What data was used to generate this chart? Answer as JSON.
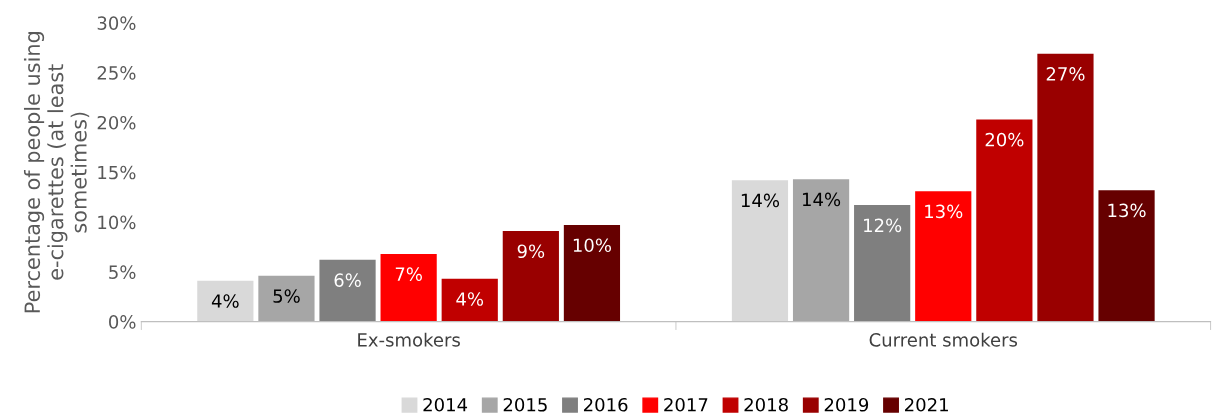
{
  "chart_data": {
    "type": "bar",
    "ylabel": "Percentage of people using e-cigarettes (at least sometimes)",
    "categories": [
      "Ex-smokers",
      "Current smokers"
    ],
    "series": [
      {
        "name": "2014",
        "color": "#d9d9d9",
        "values": [
          4.1,
          14.2
        ],
        "value_labels": [
          "4%",
          "14%"
        ]
      },
      {
        "name": "2015",
        "color": "#a6a6a6",
        "values": [
          4.6,
          14.3
        ],
        "value_labels": [
          "5%",
          "14%"
        ]
      },
      {
        "name": "2016",
        "color": "#7f7f7f",
        "values": [
          6.2,
          11.7
        ],
        "value_labels": [
          "6%",
          "12%"
        ]
      },
      {
        "name": "2017",
        "color": "#ff0000",
        "values": [
          6.8,
          13.1
        ],
        "value_labels": [
          "7%",
          "13%"
        ]
      },
      {
        "name": "2018",
        "color": "#c00000",
        "values": [
          4.3,
          20.3
        ],
        "value_labels": [
          "4%",
          "20%"
        ]
      },
      {
        "name": "2019",
        "color": "#990000",
        "values": [
          9.1,
          26.9
        ],
        "value_labels": [
          "9%",
          "27%"
        ]
      },
      {
        "name": "2021",
        "color": "#660000",
        "values": [
          9.7,
          13.2
        ],
        "value_labels": [
          "10%",
          "13%"
        ]
      }
    ],
    "ylim": [
      0,
      30
    ],
    "yticks": [
      {
        "value": 0,
        "label": "0%"
      },
      {
        "value": 5,
        "label": "5%"
      },
      {
        "value": 10,
        "label": "10%"
      },
      {
        "value": 15,
        "label": "15%"
      },
      {
        "value": 20,
        "label": "20%"
      },
      {
        "value": 25,
        "label": "25%"
      },
      {
        "value": 30,
        "label": "30%"
      }
    ],
    "grid": false,
    "legend": "bottom"
  }
}
